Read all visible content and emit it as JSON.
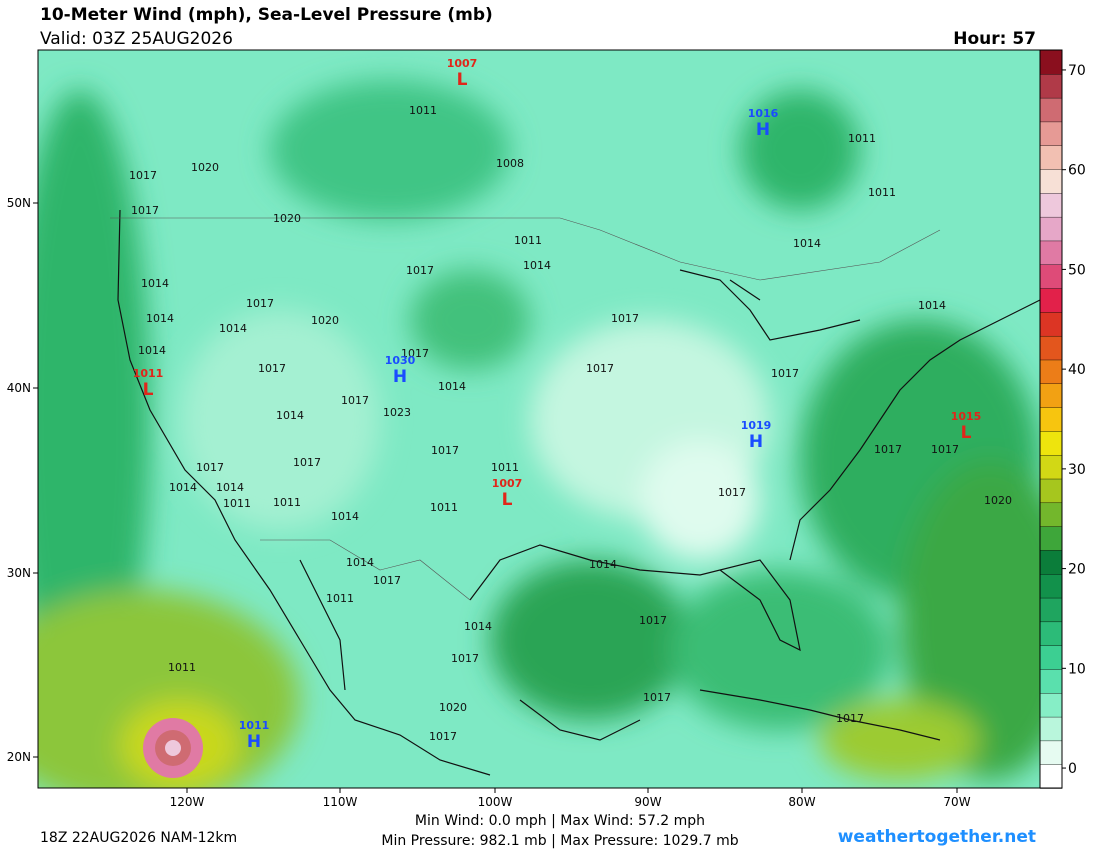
{
  "header": {
    "title": "10-Meter Wind (mph), Sea-Level Pressure (mb)",
    "valid": "Valid: 03Z 25AUG2026",
    "hour": "Hour: 57"
  },
  "colorbar": {
    "range": [
      -2,
      72
    ],
    "ticks": [
      0,
      10,
      20,
      30,
      40,
      50,
      60,
      70
    ],
    "colors": [
      "#ffffff",
      "#e6fbf1",
      "#b9f6dc",
      "#86eec6",
      "#5ae0ad",
      "#3ccf92",
      "#2cbb78",
      "#1fa55f",
      "#12914b",
      "#0b7d3a",
      "#3ea63a",
      "#73b72c",
      "#a6c61e",
      "#d2d815",
      "#eee40d",
      "#f7c50f",
      "#f2a113",
      "#ec7d18",
      "#e3561d",
      "#dc3524",
      "#e2214a",
      "#de4b78",
      "#e07aa4",
      "#e6a7c8",
      "#eec8dc",
      "#f7e0d6",
      "#f2c0b2",
      "#e69a95",
      "#cf6b72",
      "#b03a48",
      "#8a0f1e"
    ]
  },
  "latitudes": [
    "50N",
    "40N",
    "30N",
    "20N"
  ],
  "longitudes": [
    "120W",
    "110W",
    "100W",
    "90W",
    "80W",
    "70W"
  ],
  "centers": [
    {
      "symbol": "H",
      "label": "1016"
    },
    {
      "symbol": "L",
      "label": "1007"
    },
    {
      "symbol": "H",
      "label": "1030"
    },
    {
      "symbol": "H",
      "label": "1019"
    },
    {
      "symbol": "L",
      "label": "1015"
    },
    {
      "symbol": "L",
      "label": "1007"
    },
    {
      "symbol": "L",
      "label": "1011"
    },
    {
      "symbol": "H",
      "label": "1011"
    }
  ],
  "isobar_labels": [
    "1017",
    "1020",
    "1017",
    "1020",
    "1011",
    "1008",
    "1011",
    "1014",
    "1017",
    "1014",
    "1017",
    "1014",
    "1014",
    "1020",
    "1014",
    "1017",
    "1017",
    "1014",
    "1023",
    "1017",
    "1014",
    "1017",
    "1017",
    "1017",
    "1014",
    "1014",
    "1011",
    "1011",
    "1017",
    "1011",
    "1017",
    "1017",
    "1014",
    "1014",
    "1011",
    "1011",
    "1014",
    "1011",
    "1017",
    "1017",
    "1017",
    "1020",
    "1014",
    "1017",
    "1011",
    "1014",
    "1014",
    "1017",
    "1017",
    "1011",
    "1017",
    "1017",
    "1020",
    "1017"
  ],
  "footer": {
    "run": "18Z 22AUG2026 NAM-12km",
    "wind": "Min Wind:  0.0 mph | Max Wind: 57.2 mph",
    "pressure": "Min Pressure: 982.1 mb | Max Pressure: 1029.7 mb",
    "site": "weathertogether.net"
  }
}
